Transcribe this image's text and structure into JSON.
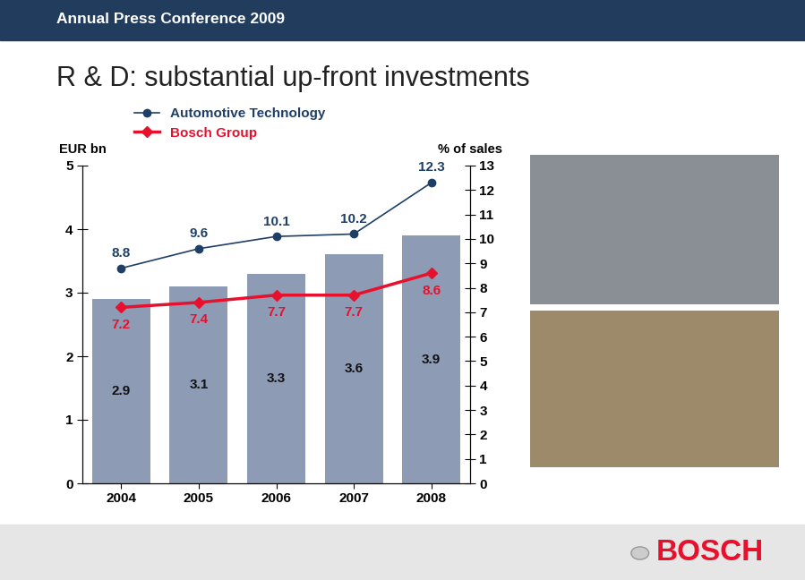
{
  "header": "Annual Press Conference 2009",
  "footer": "BOSCH",
  "chart_data": {
    "type": "bar",
    "title": "R & D: substantial up-front investments",
    "ylabel": "EUR bn",
    "y2label": "% of sales",
    "categories": [
      "2004",
      "2005",
      "2006",
      "2007",
      "2008"
    ],
    "values": [
      2.9,
      3.1,
      3.3,
      3.6,
      3.9
    ],
    "color": "#8d9bb5",
    "data_labels": true,
    "ylim": [
      0,
      5
    ],
    "yticks": [
      0,
      1,
      2,
      3,
      4,
      5
    ],
    "y2lim": [
      0,
      13
    ],
    "y2ticks": [
      0,
      1,
      2,
      3,
      4,
      5,
      6,
      7,
      8,
      9,
      10,
      11,
      12,
      13
    ],
    "legend": "upper left",
    "series": [
      {
        "name": "Automotive Technology",
        "type": "line",
        "axis": "y2",
        "color": "#1f3f66",
        "marker": "o",
        "line_style": "solid",
        "data_labels": true,
        "values": [
          8.8,
          9.6,
          10.1,
          10.2,
          12.3
        ]
      },
      {
        "name": "Bosch Group",
        "type": "line",
        "axis": "y2",
        "color": "#e8112d",
        "marker": "D",
        "line_style": "solid",
        "data_labels": true,
        "values": [
          7.2,
          7.4,
          7.7,
          7.7,
          8.6
        ]
      }
    ]
  }
}
